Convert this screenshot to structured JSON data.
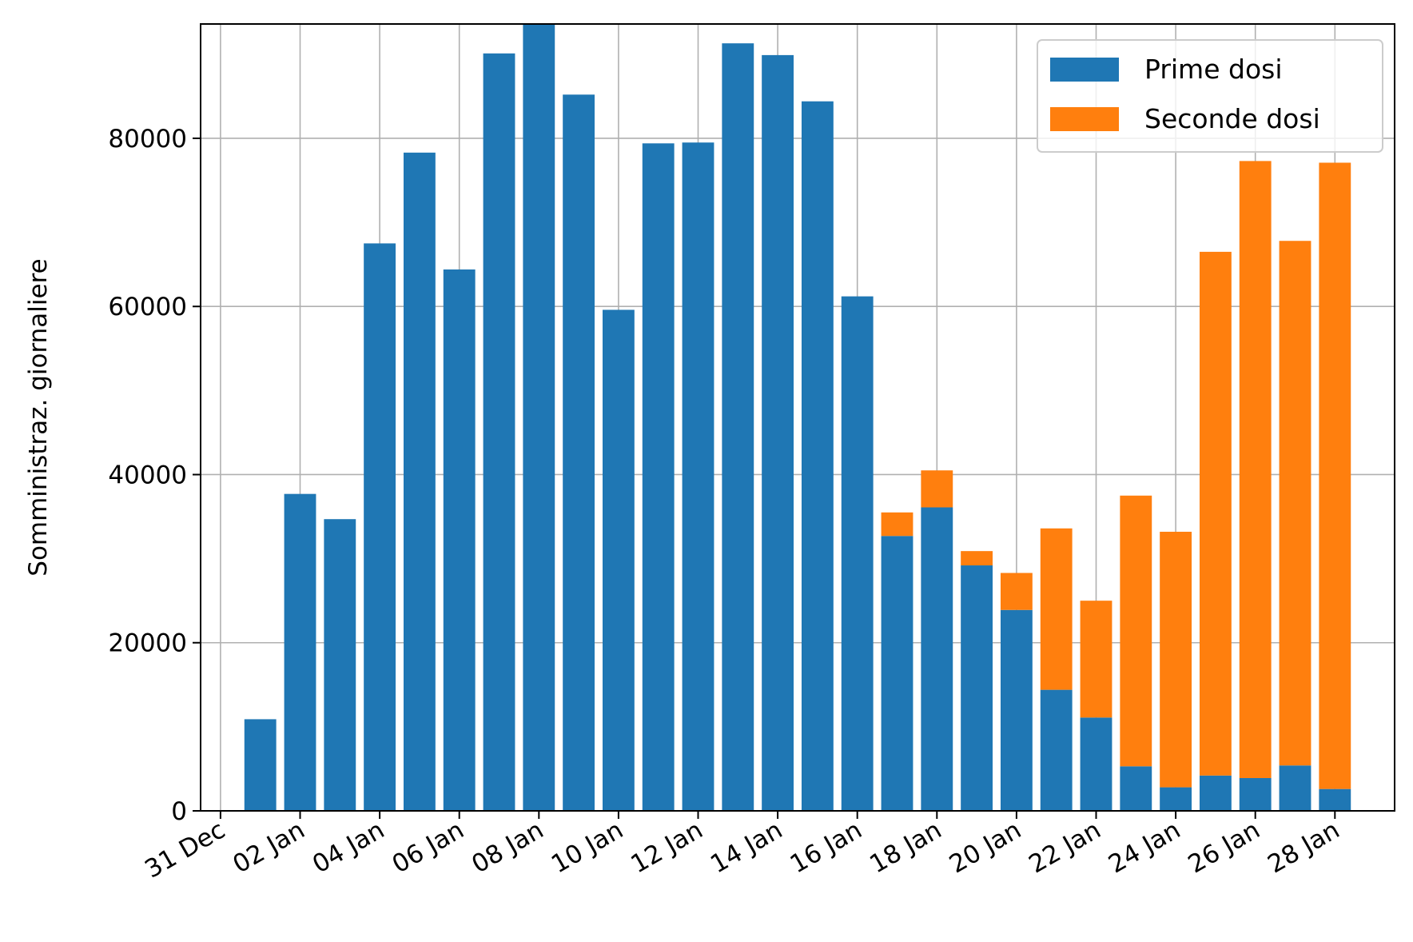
{
  "chart_data": {
    "type": "bar",
    "stacked": true,
    "title": "",
    "xlabel": "",
    "ylabel": "Somministraz. giornaliere",
    "x": [
      "2021-01-01",
      "2021-01-02",
      "2021-01-03",
      "2021-01-04",
      "2021-01-05",
      "2021-01-06",
      "2021-01-07",
      "2021-01-08",
      "2021-01-09",
      "2021-01-10",
      "2021-01-11",
      "2021-01-12",
      "2021-01-13",
      "2021-01-14",
      "2021-01-15",
      "2021-01-16",
      "2021-01-17",
      "2021-01-18",
      "2021-01-19",
      "2021-01-20",
      "2021-01-21",
      "2021-01-22",
      "2021-01-23",
      "2021-01-24",
      "2021-01-25",
      "2021-01-26",
      "2021-01-27",
      "2021-01-28"
    ],
    "series": [
      {
        "name": "Prime dosi",
        "color": "#1f77b4",
        "values": [
          10900,
          37700,
          34700,
          67500,
          78300,
          64400,
          90100,
          93600,
          85200,
          59600,
          79400,
          79500,
          91300,
          89900,
          84400,
          61200,
          32700,
          36100,
          29200,
          23900,
          14400,
          11100,
          5300,
          2800,
          4200,
          3900,
          5400,
          2600
        ]
      },
      {
        "name": "Seconde dosi",
        "color": "#ff7f0e",
        "values": [
          0,
          0,
          0,
          0,
          0,
          0,
          0,
          0,
          0,
          0,
          0,
          0,
          0,
          0,
          0,
          0,
          2800,
          4400,
          1700,
          4400,
          19200,
          13900,
          32200,
          30400,
          62300,
          73400,
          62400,
          74500
        ]
      }
    ],
    "xlim": [
      "2020-12-30T12:00",
      "2021-01-29T12:00"
    ],
    "ylim": [
      0,
      93600
    ],
    "x_ticks": [
      "31 Dec",
      "02 Jan",
      "04 Jan",
      "06 Jan",
      "08 Jan",
      "10 Jan",
      "12 Jan",
      "14 Jan",
      "16 Jan",
      "18 Jan",
      "20 Jan",
      "22 Jan",
      "24 Jan",
      "26 Jan",
      "28 Jan"
    ],
    "x_tick_dates": [
      "2020-12-31",
      "2021-01-02",
      "2021-01-04",
      "2021-01-06",
      "2021-01-08",
      "2021-01-10",
      "2021-01-12",
      "2021-01-14",
      "2021-01-16",
      "2021-01-18",
      "2021-01-20",
      "2021-01-22",
      "2021-01-24",
      "2021-01-26",
      "2021-01-28"
    ],
    "y_ticks": [
      0,
      20000,
      40000,
      60000,
      80000
    ],
    "y_tick_labels": [
      "0",
      "20000",
      "40000",
      "60000",
      "80000"
    ],
    "grid": true,
    "legend_position": "top-right"
  }
}
